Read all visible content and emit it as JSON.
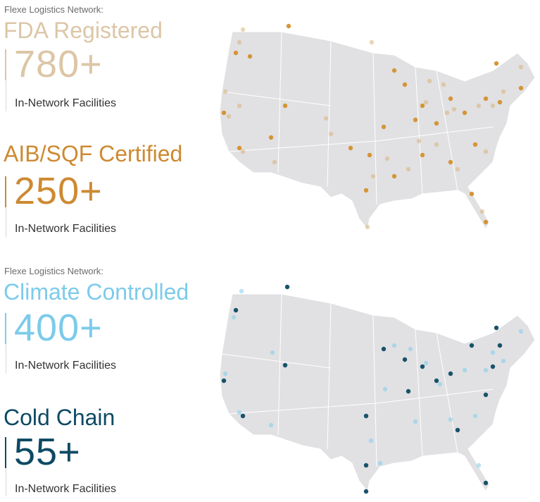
{
  "panels": [
    {
      "label": "Flexe Logistics Network:",
      "metrics": [
        {
          "title": "FDA Registered",
          "count": "780+",
          "caption": "In-Network Facilities"
        },
        {
          "title": "AIB/SQF Certified",
          "count": "250+",
          "caption": "In-Network Facilities"
        }
      ]
    },
    {
      "label": "Flexe Logistics Network:",
      "metrics": [
        {
          "title": "Climate Controlled",
          "count": "400+",
          "caption": "In-Network Facilities"
        },
        {
          "title": "Cold Chain",
          "count": "55+",
          "caption": "In-Network Facilities"
        }
      ]
    }
  ]
}
